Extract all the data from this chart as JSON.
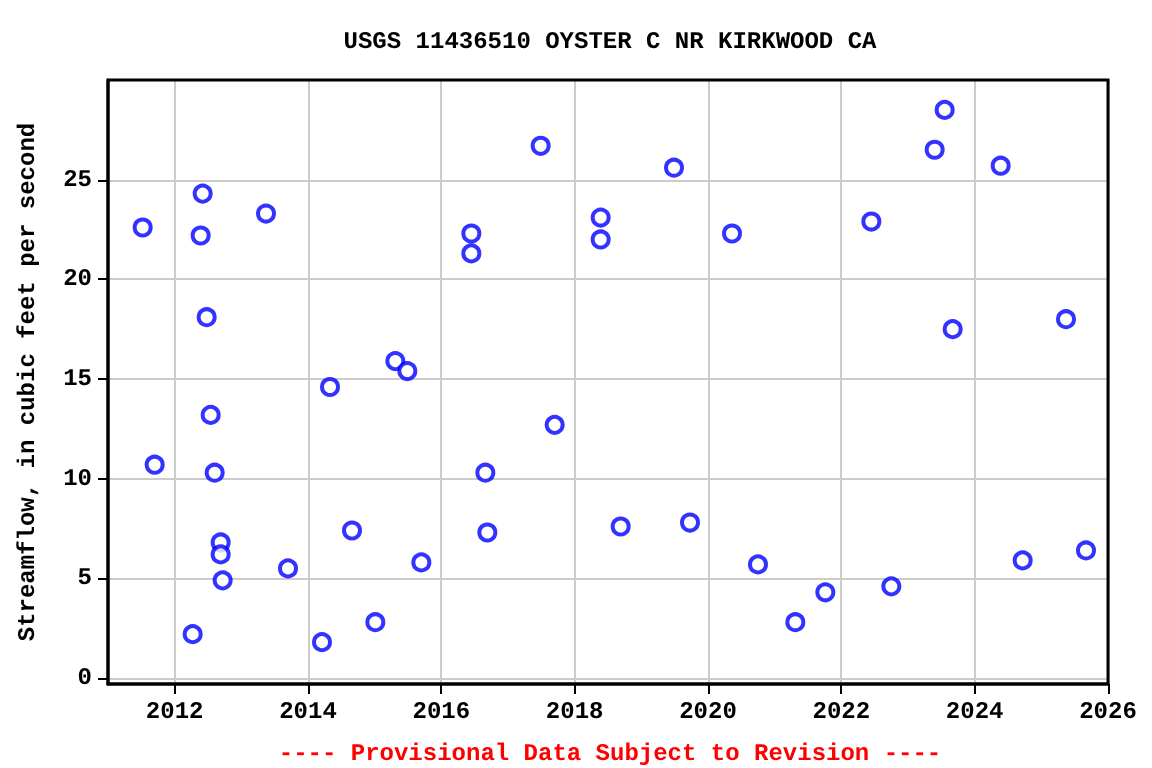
{
  "chart_data": {
    "type": "scatter",
    "title": "USGS 11436510 OYSTER C NR KIRKWOOD CA",
    "ylabel": "Streamflow, in cubic feet per second",
    "annotations": [
      "---- Provisional Data Subject to Revision ----"
    ],
    "x": [
      2011.52,
      2011.7,
      2012.27,
      2012.42,
      2012.39,
      2012.48,
      2012.54,
      2012.6,
      2012.69,
      2012.69,
      2012.72,
      2013.37,
      2013.7,
      2014.21,
      2014.33,
      2014.66,
      2015.01,
      2015.31,
      2015.49,
      2015.7,
      2016.45,
      2016.45,
      2016.66,
      2016.69,
      2017.49,
      2017.7,
      2018.39,
      2018.39,
      2018.69,
      2019.49,
      2019.73,
      2020.36,
      2020.75,
      2021.31,
      2021.76,
      2022.45,
      2022.75,
      2023.4,
      2023.55,
      2023.67,
      2024.39,
      2024.72,
      2025.37,
      2025.67
    ],
    "series": [
      {
        "color": "#0000ff",
        "values": [
          22.6,
          10.7,
          2.2,
          24.3,
          22.2,
          18.1,
          13.2,
          10.3,
          6.8,
          6.2,
          4.9,
          23.3,
          5.5,
          1.8,
          14.6,
          7.4,
          2.8,
          15.9,
          15.4,
          5.8,
          22.3,
          21.3,
          10.3,
          7.3,
          26.7,
          12.7,
          23.1,
          22.0,
          7.6,
          25.6,
          7.8,
          22.3,
          5.7,
          2.8,
          4.3,
          22.9,
          4.6,
          26.5,
          28.5,
          17.5,
          25.7,
          5.9,
          18.0,
          6.4
        ]
      }
    ],
    "xlim": [
      2011,
      2026
    ],
    "xticks": [
      2012,
      2014,
      2016,
      2018,
      2020,
      2022,
      2024,
      2026
    ],
    "ylim": [
      -0.3,
      30
    ],
    "yticks": [
      0,
      5,
      10,
      15,
      20,
      25
    ],
    "grid": true,
    "marker": "circle"
  }
}
